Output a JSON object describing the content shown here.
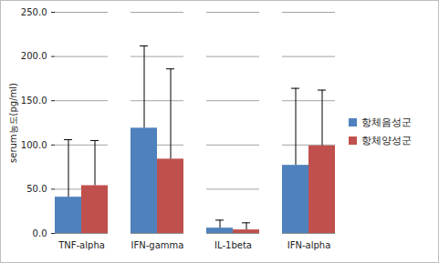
{
  "chart_data": {
    "type": "bar",
    "y_label": "serum농도(pg/ml)",
    "categories": [
      "TNF-alpha",
      "IFN-gamma",
      "IL-1beta",
      "IFN-alpha"
    ],
    "series": [
      {
        "name": "항체음성군",
        "color": "#4f81bd",
        "values": [
          41,
          119,
          6,
          77
        ],
        "errors": [
          65,
          93,
          9,
          87
        ]
      },
      {
        "name": "항체양성군",
        "color": "#c0504d",
        "values": [
          54,
          84,
          4,
          99
        ],
        "errors": [
          51,
          102,
          8,
          63
        ]
      }
    ],
    "ylim": [
      0,
      250
    ],
    "yticks": [
      {
        "value": 0,
        "label": "0.0"
      },
      {
        "value": 50,
        "label": "50.0"
      },
      {
        "value": 100,
        "label": "100.0"
      },
      {
        "value": 150,
        "label": "150.0"
      },
      {
        "value": 200,
        "label": "200.0"
      },
      {
        "value": 250,
        "label": "250.0"
      }
    ],
    "grid": true,
    "legend": "right"
  }
}
